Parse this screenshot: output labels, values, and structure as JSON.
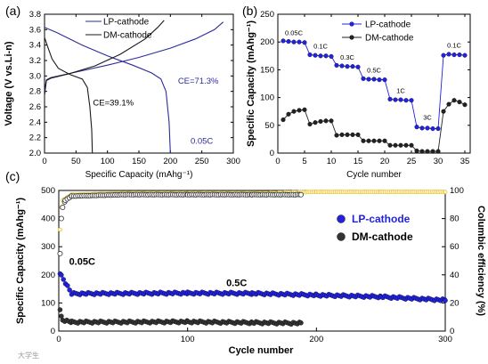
{
  "watermark": "大学生",
  "chart_data": [
    {
      "panel": "(a)",
      "type": "line",
      "xlabel": "Specific Capacity (mAhg⁻¹)",
      "ylabel": "Voltage (V vs.Li-n)",
      "xlim": [
        0,
        300
      ],
      "ylim": [
        2.0,
        3.8
      ],
      "xticks": [
        "0",
        "50",
        "100",
        "150",
        "200",
        "250",
        "300"
      ],
      "yticks": [
        "2.0",
        "2.2",
        "2.4",
        "2.6",
        "2.8",
        "3.0",
        "3.2",
        "3.4",
        "3.6",
        "3.8"
      ],
      "legend": [
        "LP-cathode",
        "DM-cathode"
      ],
      "series": [
        {
          "name": "LP-cathode",
          "color": "#2b2b9c",
          "marker": "none",
          "points": [
            [
              0,
              2.8
            ],
            [
              3,
              2.95
            ],
            [
              10,
              2.98
            ],
            [
              50,
              3.05
            ],
            [
              100,
              3.14
            ],
            [
              150,
              3.24
            ],
            [
              200,
              3.36
            ],
            [
              240,
              3.48
            ],
            [
              270,
              3.6
            ],
            [
              284,
              3.7
            ]
          ]
        },
        {
          "name": "LP-cathode",
          "color": "#2b2b9c",
          "marker": "none",
          "points": [
            [
              0,
              3.63
            ],
            [
              20,
              3.56
            ],
            [
              60,
              3.4
            ],
            [
              100,
              3.26
            ],
            [
              140,
              3.14
            ],
            [
              170,
              3.04
            ],
            [
              185,
              2.96
            ],
            [
              193,
              2.8
            ],
            [
              198,
              2.4
            ],
            [
              200,
              2.0
            ]
          ]
        },
        {
          "name": "DM-cathode",
          "color": "#1a1a1a",
          "marker": "none",
          "points": [
            [
              0,
              2.75
            ],
            [
              3,
              2.94
            ],
            [
              10,
              2.97
            ],
            [
              40,
              3.03
            ],
            [
              80,
              3.13
            ],
            [
              120,
              3.28
            ],
            [
              160,
              3.48
            ],
            [
              180,
              3.63
            ],
            [
              190,
              3.72
            ]
          ]
        },
        {
          "name": "DM-cathode",
          "color": "#1a1a1a",
          "marker": "none",
          "points": [
            [
              0,
              3.5
            ],
            [
              5,
              3.38
            ],
            [
              12,
              3.22
            ],
            [
              22,
              3.1
            ],
            [
              40,
              3.02
            ],
            [
              60,
              2.96
            ],
            [
              68,
              2.85
            ],
            [
              72,
              2.6
            ],
            [
              75,
              2.3
            ],
            [
              76,
              2.0
            ]
          ]
        }
      ],
      "annotations": [
        {
          "text": "CE=71.3%",
          "x": 212,
          "y": 2.9,
          "color": "#2b2b9c"
        },
        {
          "text": "CE=39.1%",
          "x": 77,
          "y": 2.62,
          "color": "#000000"
        },
        {
          "text": "0.05C",
          "x": 232,
          "y": 2.12,
          "color": "#2b2b9c"
        }
      ]
    },
    {
      "panel": "(b)",
      "type": "scatter",
      "xlabel": "Cycle number",
      "ylabel": "Specific Capacity (mAhg⁻¹)",
      "xlim": [
        0,
        36
      ],
      "ylim": [
        0,
        250
      ],
      "xticks": [
        "0",
        "5",
        "10",
        "15",
        "20",
        "25",
        "30",
        "35"
      ],
      "yticks": [
        "0",
        "50",
        "100",
        "150",
        "200",
        "250"
      ],
      "legend": [
        "LP-cathode",
        "DM-cathode"
      ],
      "x": [
        1,
        2,
        3,
        4,
        5,
        6,
        7,
        8,
        9,
        10,
        11,
        12,
        13,
        14,
        15,
        16,
        17,
        18,
        19,
        20,
        21,
        22,
        23,
        24,
        25,
        26,
        27,
        28,
        29,
        30,
        31,
        32,
        33,
        34,
        35
      ],
      "series": [
        {
          "name": "LP-cathode",
          "color": "#2222dd",
          "values": [
            202,
            201,
            200,
            200,
            199,
            177,
            176,
            175,
            175,
            174,
            158,
            157,
            156,
            156,
            155,
            134,
            133,
            133,
            132,
            132,
            97,
            96,
            96,
            95,
            95,
            47,
            45,
            45,
            44,
            44,
            176,
            178,
            177,
            177,
            176
          ]
        },
        {
          "name": "DM-cathode",
          "color": "#222222",
          "values": [
            60,
            70,
            75,
            77,
            78,
            52,
            55,
            57,
            58,
            58,
            32,
            33,
            33,
            33,
            33,
            22,
            22,
            22,
            22,
            22,
            14,
            14,
            14,
            14,
            14,
            4,
            3,
            3,
            3,
            3,
            75,
            88,
            95,
            92,
            87
          ]
        }
      ],
      "rate_labels": [
        {
          "text": "0.05C",
          "x": 3,
          "y": 212
        },
        {
          "text": "0.1C",
          "x": 8,
          "y": 188
        },
        {
          "text": "0.3C",
          "x": 13,
          "y": 168
        },
        {
          "text": "0.5C",
          "x": 18,
          "y": 145
        },
        {
          "text": "1C",
          "x": 23,
          "y": 108
        },
        {
          "text": "3C",
          "x": 28,
          "y": 60
        },
        {
          "text": "0.1C",
          "x": 33,
          "y": 190
        }
      ]
    },
    {
      "panel": "(c)",
      "type": "scatter",
      "xlabel": "Cycle number",
      "ylabel": "Specific Capacity (mAhg⁻¹)",
      "y2label": "Columbic efficiency (%)",
      "xlim": [
        0,
        300
      ],
      "ylim": [
        0,
        500
      ],
      "y2lim": [
        0,
        100
      ],
      "xticks": [
        "0",
        "100",
        "200",
        "300"
      ],
      "yticks": [
        "0",
        "100",
        "200",
        "300",
        "400",
        "500"
      ],
      "y2ticks": [
        "0",
        "20",
        "40",
        "60",
        "80",
        "100"
      ],
      "legend": [
        "LP-cathode",
        "DM-cathode"
      ],
      "annotations": [
        {
          "text": "0.05C",
          "x": 8,
          "y": 235
        },
        {
          "text": "0.5C",
          "x": 130,
          "y": 160
        }
      ],
      "series": [
        {
          "name": "LP-cathode",
          "role": "capacity",
          "color": "#2222dd",
          "axis": "left",
          "points": [
            [
              1,
              200
            ],
            [
              2,
              198
            ],
            [
              10,
              133
            ],
            [
              50,
              134
            ],
            [
              100,
              135
            ],
            [
              150,
              134
            ],
            [
              200,
              128
            ],
            [
              250,
              122
            ],
            [
              300,
              110
            ]
          ]
        },
        {
          "name": "DM-cathode",
          "role": "capacity",
          "color": "#333333",
          "axis": "left",
          "points": [
            [
              1,
              72
            ],
            [
              2,
              52
            ],
            [
              3,
              40
            ],
            [
              10,
              32
            ],
            [
              50,
              32
            ],
            [
              100,
              33
            ],
            [
              150,
              30
            ],
            [
              188,
              28
            ]
          ]
        },
        {
          "name": "LP-cathode",
          "role": "efficiency",
          "color": "#e8c640",
          "axis": "right",
          "points": [
            [
              1,
              72
            ],
            [
              2,
              88
            ],
            [
              3,
              93
            ],
            [
              10,
              97
            ],
            [
              50,
              98
            ],
            [
              100,
              98
            ],
            [
              150,
              98
            ],
            [
              200,
              99
            ],
            [
              250,
              99
            ],
            [
              300,
              99
            ]
          ]
        },
        {
          "name": "DM-cathode",
          "role": "efficiency",
          "color": "#333333",
          "axis": "right",
          "points": [
            [
              1,
              55
            ],
            [
              2,
              80
            ],
            [
              3,
              88
            ],
            [
              5,
              93
            ],
            [
              10,
              96
            ],
            [
              50,
              97
            ],
            [
              100,
              97
            ],
            [
              150,
              97
            ],
            [
              188,
              97
            ]
          ]
        }
      ]
    }
  ]
}
